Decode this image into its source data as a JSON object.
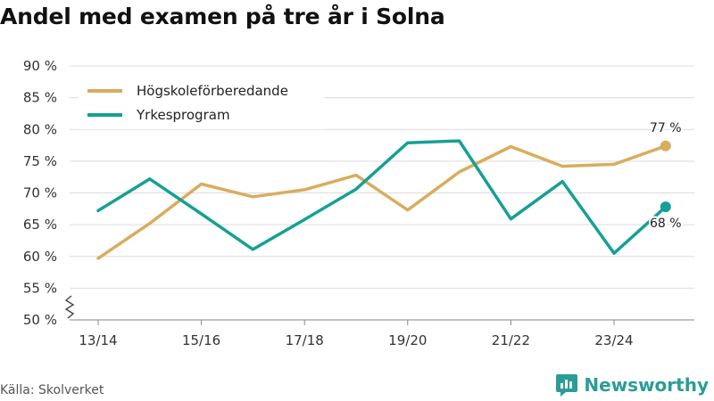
{
  "chart_data": {
    "type": "line",
    "title": "Andel med examen på tre år i Solna",
    "x": [
      "13/14",
      "14/15",
      "15/16",
      "16/17",
      "17/18",
      "18/19",
      "19/20",
      "20/21",
      "21/22",
      "22/23",
      "23/24",
      "24/25"
    ],
    "x_tick_labels": [
      "13/14",
      "15/16",
      "17/18",
      "19/20",
      "21/22",
      "23/24"
    ],
    "y_ticks": [
      50,
      55,
      60,
      65,
      70,
      75,
      80,
      85,
      90
    ],
    "y_tick_suffix": " %",
    "ylim": [
      50,
      90
    ],
    "y_axis_break": true,
    "series": [
      {
        "name": "Högskoleförberedande",
        "color": "#d8ad5e",
        "values": [
          59.7,
          65.2,
          71.4,
          69.4,
          70.5,
          72.8,
          67.3,
          73.3,
          77.3,
          74.2,
          74.5,
          77.4
        ],
        "end_label": "77 %"
      },
      {
        "name": "Yrkesprogram",
        "color": "#16a096",
        "values": [
          67.2,
          72.2,
          66.7,
          61.1,
          65.8,
          70.6,
          77.9,
          78.2,
          65.9,
          71.8,
          60.5,
          67.8
        ],
        "end_label": "68 %"
      }
    ],
    "legend_position": "top-left",
    "grid": "horizontal"
  },
  "footer": {
    "source": "Källa: Skolverket",
    "brand": "Newsworthy"
  }
}
